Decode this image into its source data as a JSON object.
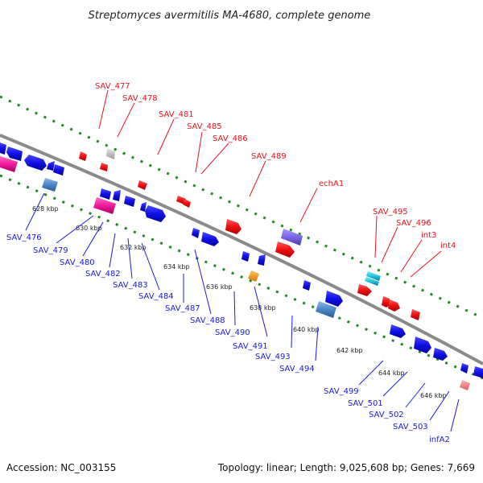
{
  "title": "Streptomyces avermitilis MA-4680, complete genome",
  "footer": {
    "accession": "Accession: NC_003155",
    "summary": "Topology: linear; Length: 9,025,608 bp; Genes: 7,669"
  },
  "colors": {
    "forward_label": "#e8161b",
    "reverse_label": "#1a1ad6",
    "backbone": "#8a8a8a",
    "tick_dots": "#1f8a1f"
  },
  "top_genes": [
    {
      "label": "SAV_477"
    },
    {
      "label": "SAV_478"
    },
    {
      "label": "SAV_481"
    },
    {
      "label": "SAV_485"
    },
    {
      "label": "SAV_486"
    },
    {
      "label": "SAV_489"
    },
    {
      "label": "echA1"
    },
    {
      "label": "SAV_495"
    },
    {
      "label": "SAV_496"
    },
    {
      "label": "int3"
    },
    {
      "label": "int4"
    }
  ],
  "bottom_genes": [
    {
      "label": "SAV_476"
    },
    {
      "label": "SAV_479"
    },
    {
      "label": "SAV_480"
    },
    {
      "label": "SAV_482"
    },
    {
      "label": "SAV_483"
    },
    {
      "label": "SAV_484"
    },
    {
      "label": "SAV_487"
    },
    {
      "label": "SAV_488"
    },
    {
      "label": "SAV_490"
    },
    {
      "label": "SAV_491"
    },
    {
      "label": "SAV_493"
    },
    {
      "label": "SAV_494"
    },
    {
      "label": "SAV_499"
    },
    {
      "label": "SAV_501"
    },
    {
      "label": "SAV_502"
    },
    {
      "label": "SAV_503"
    },
    {
      "label": "infA2"
    }
  ],
  "kbp_ticks": [
    {
      "label": "628 kbp"
    },
    {
      "label": "630 kbp"
    },
    {
      "label": "632 kbp"
    },
    {
      "label": "634 kbp"
    },
    {
      "label": "636 kbp"
    },
    {
      "label": "638 kbp"
    },
    {
      "label": "640 kbp"
    },
    {
      "label": "642 kbp"
    },
    {
      "label": "644 kbp"
    },
    {
      "label": "646 kbp"
    }
  ]
}
